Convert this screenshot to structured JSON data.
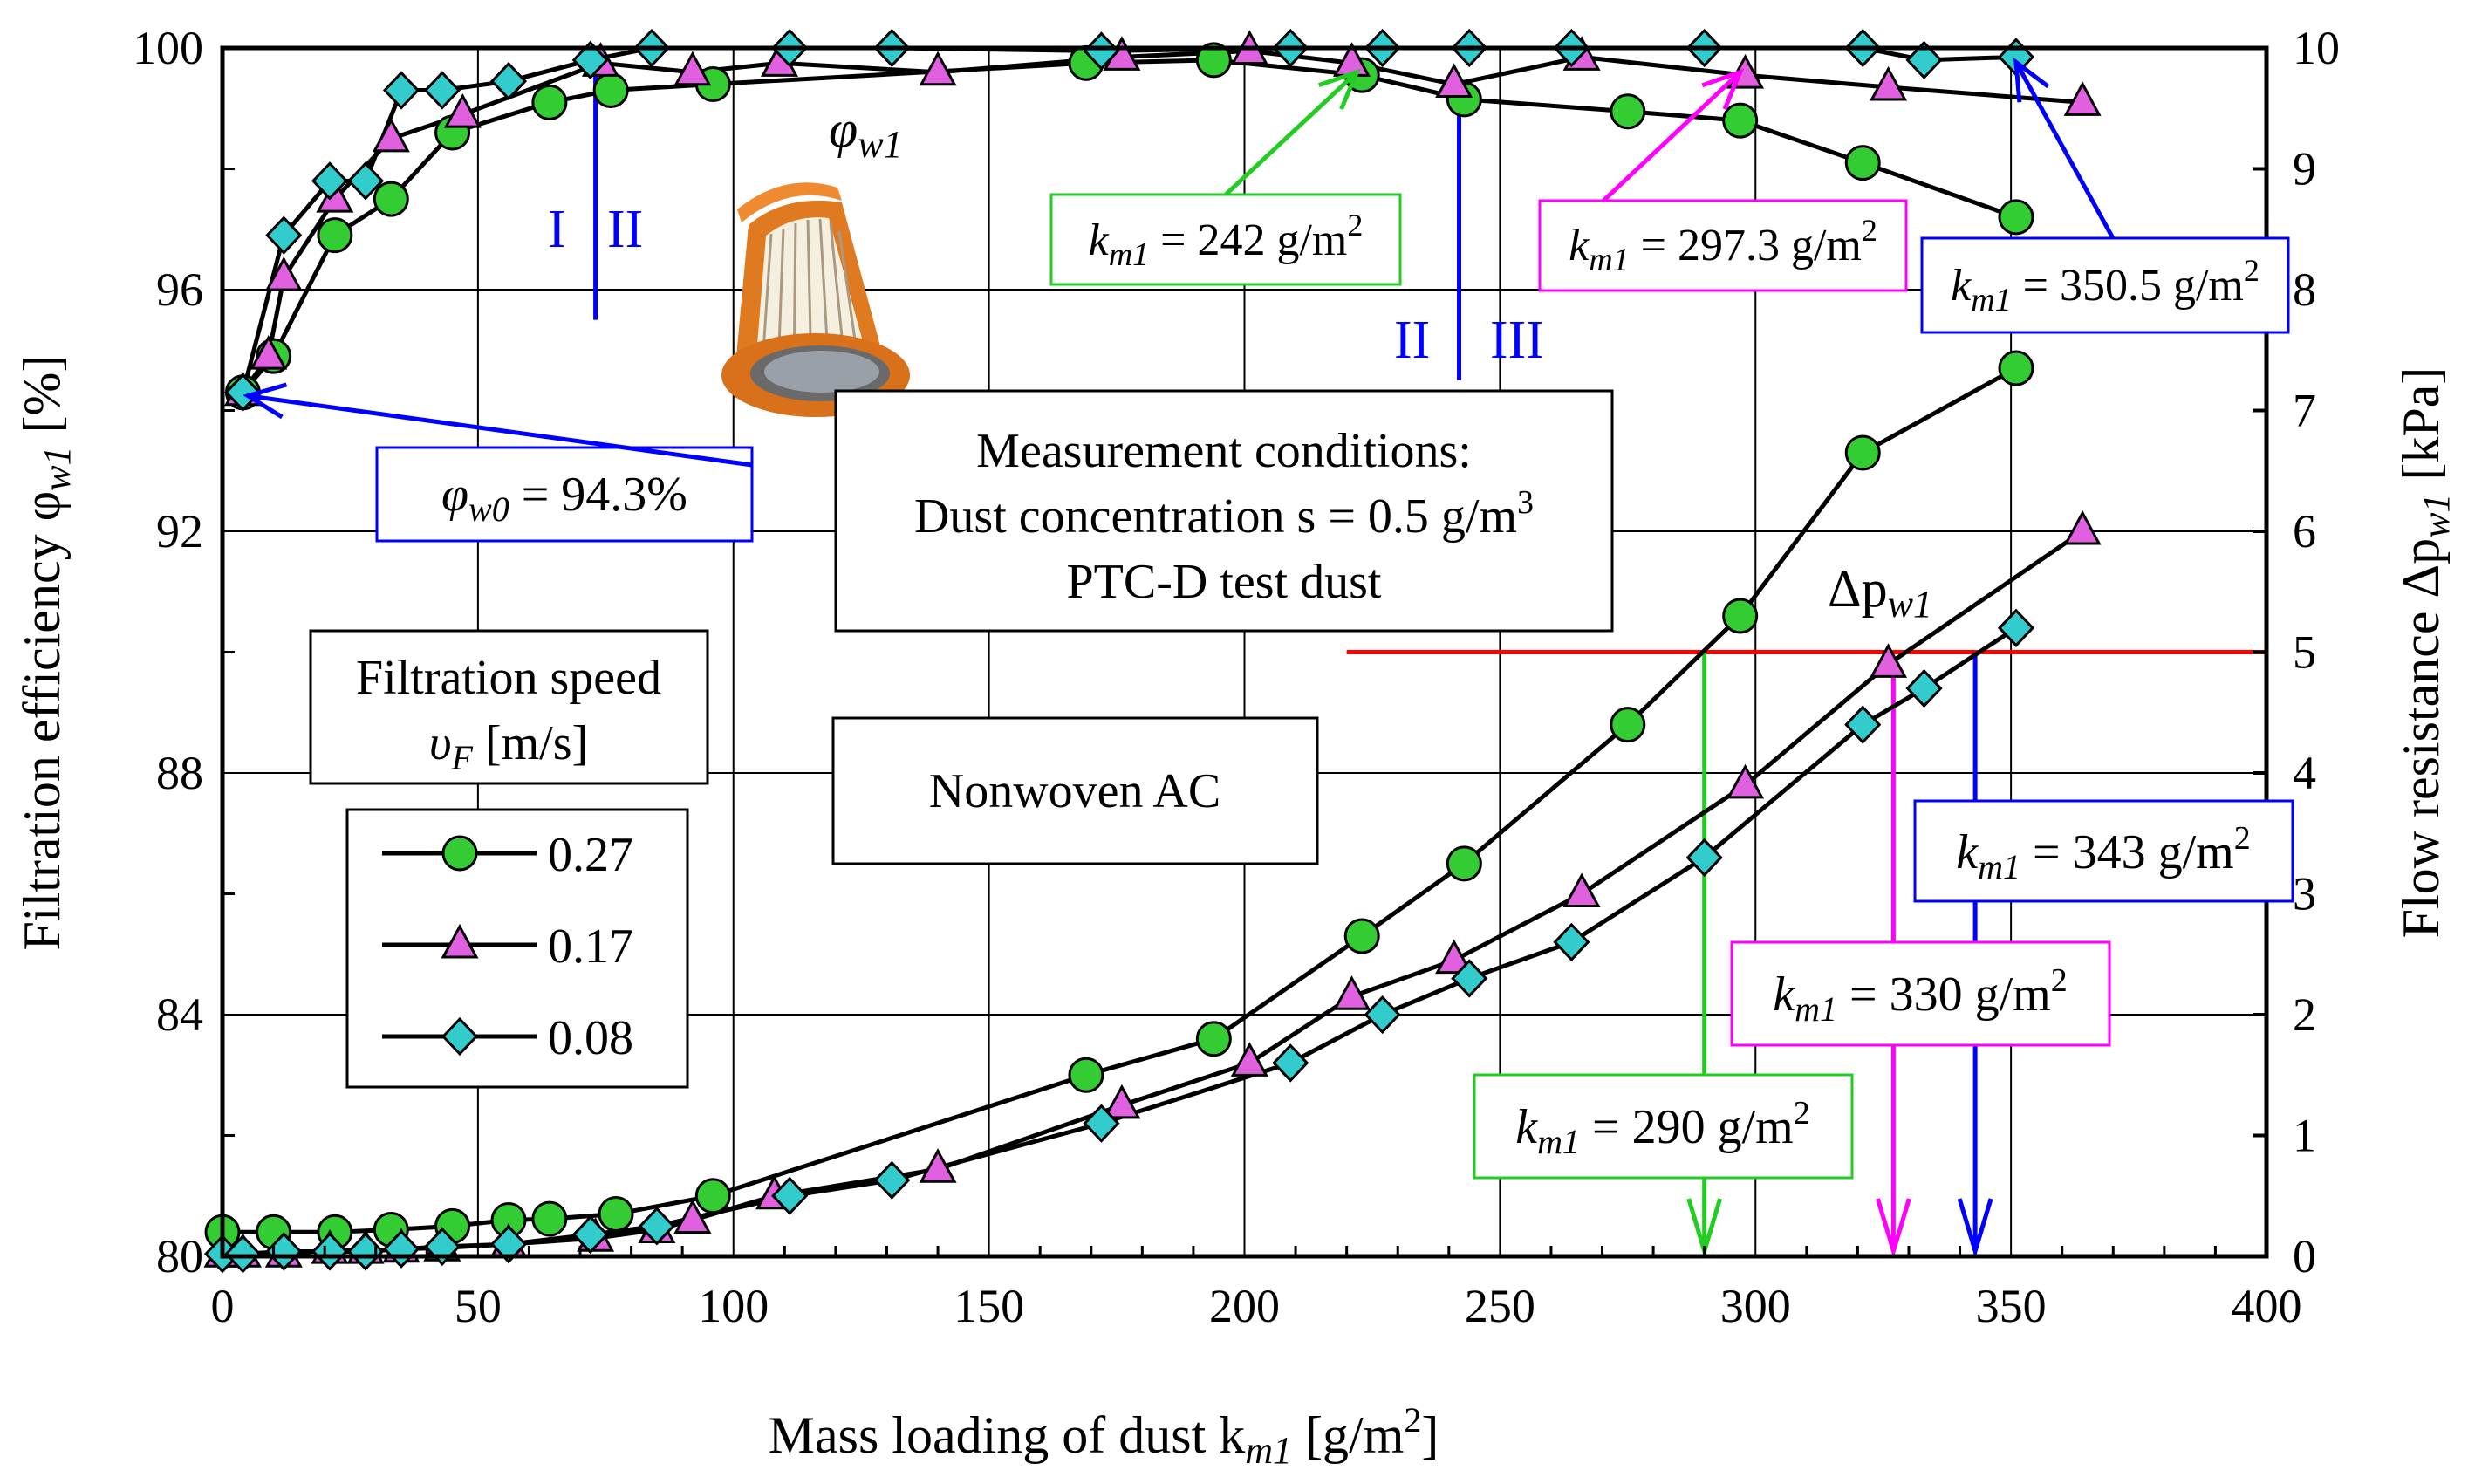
{
  "chart_data": {
    "type": "line",
    "title": "",
    "xlabel": "Mass loading of dust k",
    "xlabel_sub": "m1",
    "xlabel_unit": " [g/m",
    "xlabel_unit_sup": "2",
    "xlabel_unit_end": "]",
    "ylabel_left": "Filtration efficiency φ",
    "ylabel_left_sub": "w1",
    "ylabel_left_unit": " [%]",
    "ylabel_right": "Flow resistance Δp",
    "ylabel_right_sub": "w1",
    "ylabel_right_unit": " [kPa]",
    "xlim": [
      0,
      400
    ],
    "ylim_left": [
      80,
      100
    ],
    "ylim_right": [
      0,
      10
    ],
    "x_ticks": [
      0,
      50,
      100,
      150,
      200,
      250,
      300,
      350,
      400
    ],
    "y_left_ticks": [
      80,
      84,
      88,
      92,
      96,
      100
    ],
    "y_right_ticks": [
      0,
      1,
      2,
      3,
      4,
      5,
      6,
      7,
      8,
      9,
      10
    ],
    "grid": true,
    "colors": {
      "s027": "#33cc33",
      "s017": "#e060e0",
      "s008": "#33cccc",
      "blue": "#0000ff",
      "red": "#ff0000",
      "green": "#22cc22",
      "magenta": "#ff00ff"
    },
    "series": [
      {
        "name": "0.27",
        "marker": "circle",
        "axis": "left",
        "kind": "efficiency",
        "x": [
          4,
          10,
          22,
          33,
          45,
          64,
          76,
          96,
          169,
          194,
          223,
          243,
          275,
          297,
          321,
          351
        ],
        "y": [
          94.3,
          94.9,
          96.9,
          97.5,
          98.6,
          99.1,
          99.3,
          99.4,
          99.75,
          99.8,
          99.55,
          99.15,
          98.95,
          98.8,
          98.1,
          97.2
        ]
      },
      {
        "name": "0.17",
        "marker": "triangle",
        "axis": "left",
        "kind": "efficiency",
        "x": [
          4,
          9,
          12,
          22,
          33,
          47,
          74,
          92,
          109,
          140,
          176,
          201,
          221,
          241,
          266,
          298,
          326,
          364
        ],
        "y": [
          94.3,
          94.9,
          96.2,
          97.5,
          98.5,
          98.9,
          99.75,
          99.6,
          99.75,
          99.6,
          99.85,
          99.95,
          99.75,
          99.4,
          99.85,
          99.55,
          99.35,
          99.1
        ]
      },
      {
        "name": "0.08",
        "marker": "diamond",
        "axis": "left",
        "kind": "efficiency",
        "x": [
          4,
          12,
          21,
          28,
          35,
          43,
          56,
          72,
          84,
          111,
          131,
          172,
          209,
          227,
          244,
          264,
          290,
          321,
          333,
          351
        ],
        "y": [
          94.3,
          96.9,
          97.8,
          97.8,
          99.3,
          99.3,
          99.45,
          99.8,
          100,
          100,
          100,
          99.95,
          100,
          100,
          100,
          100,
          100,
          100,
          99.8,
          99.85
        ]
      },
      {
        "name": "0.27",
        "marker": "circle",
        "axis": "right",
        "kind": "resistance",
        "x": [
          0,
          10,
          22,
          33,
          45,
          56,
          64,
          77,
          96,
          169,
          194,
          223,
          243,
          275,
          297,
          321,
          351
        ],
        "y": [
          0.2,
          0.2,
          0.2,
          0.22,
          0.25,
          0.3,
          0.31,
          0.35,
          0.5,
          1.5,
          1.8,
          2.65,
          3.25,
          4.4,
          5.3,
          6.65,
          7.35
        ]
      },
      {
        "name": "0.17",
        "marker": "triangle",
        "axis": "right",
        "kind": "resistance",
        "x": [
          0,
          4,
          12,
          21,
          28,
          35,
          43,
          56,
          73,
          85,
          92,
          108,
          140,
          176,
          201,
          221,
          241,
          266,
          298,
          326,
          364
        ],
        "y": [
          0.02,
          0.02,
          0.02,
          0.05,
          0.05,
          0.06,
          0.07,
          0.1,
          0.15,
          0.22,
          0.3,
          0.5,
          0.72,
          1.25,
          1.6,
          2.15,
          2.45,
          3.0,
          3.9,
          4.9,
          6.0
        ]
      },
      {
        "name": "0.08",
        "marker": "diamond",
        "axis": "right",
        "kind": "resistance",
        "x": [
          0,
          4,
          12,
          21,
          28,
          35,
          43,
          56,
          72,
          85,
          111,
          131,
          172,
          209,
          227,
          244,
          264,
          290,
          321,
          333,
          351
        ],
        "y": [
          0.02,
          0.02,
          0.04,
          0.04,
          0.04,
          0.06,
          0.08,
          0.1,
          0.18,
          0.25,
          0.5,
          0.63,
          1.1,
          1.6,
          2.0,
          2.3,
          2.6,
          3.3,
          4.4,
          4.7,
          5.2
        ]
      }
    ],
    "reference_lines": [
      {
        "kind": "horizontal",
        "axis": "left",
        "y": 100,
        "x_from": 0,
        "x_to": 400,
        "color": "#0000ff"
      },
      {
        "kind": "horizontal",
        "axis": "right",
        "y": 5,
        "x_from": 220,
        "x_to": 400,
        "color": "#ff0000"
      },
      {
        "kind": "vertical",
        "axis": "left",
        "x": 73,
        "y_from": 95.5,
        "y_to": 100,
        "color": "#0000ff"
      },
      {
        "kind": "vertical",
        "axis": "left",
        "x": 242,
        "y_from": 94.5,
        "y_to": 99.0,
        "color": "#0000ff"
      },
      {
        "kind": "arrow-down",
        "axis": "right",
        "x": 290,
        "y_from": 5,
        "y_to": 0,
        "color": "#22cc22"
      },
      {
        "kind": "arrow-down",
        "axis": "right",
        "x": 327,
        "y_from": 4.9,
        "y_to": 0,
        "color": "#ff00ff"
      },
      {
        "kind": "arrow-down",
        "axis": "right",
        "x": 343,
        "y_from": 5,
        "y_to": 0,
        "color": "#0000ff"
      }
    ],
    "annotations": {
      "phi_label": "φ",
      "phi_sub": "w1",
      "dp_label": "Δp",
      "dp_sub": "w1",
      "zone_I": "I",
      "zone_II_left": "II",
      "zone_II_right": "II",
      "zone_III": "III",
      "phi0_prefix": "φ",
      "phi0_sub": "w0",
      "phi0_value": " = 94.3%",
      "conditions_line1": "Measurement conditions:",
      "conditions_line2": "Dust concentration s = 0.5 g/m",
      "conditions_line2_sup": "3",
      "conditions_line3": "PTC-D test dust",
      "speed_title_line1": "Filtration speed",
      "speed_title_line2": "υ",
      "speed_title_sub": "F",
      "speed_title_unit": " [m/s]",
      "material": "Nonwoven AC",
      "k_prefix": "k",
      "k_sub": "m1",
      "k_unit": " g/m",
      "k_unit_sup": "2",
      "k_242": " = 242",
      "k_297_3": " = 297.3",
      "k_350_5": " = 350.5",
      "k_290": " = 290",
      "k_330": " = 330",
      "k_343": " = 343"
    },
    "legend": {
      "placement": "left",
      "entries": [
        "0.27",
        "0.17",
        "0.08"
      ]
    }
  }
}
